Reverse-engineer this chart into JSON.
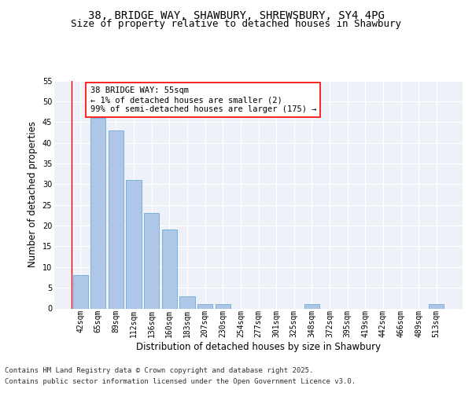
{
  "title_line1": "38, BRIDGE WAY, SHAWBURY, SHREWSBURY, SY4 4PG",
  "title_line2": "Size of property relative to detached houses in Shawbury",
  "xlabel": "Distribution of detached houses by size in Shawbury",
  "ylabel": "Number of detached properties",
  "bar_color": "#aec6e8",
  "bar_edge_color": "#5a9fd4",
  "categories": [
    "42sqm",
    "65sqm",
    "89sqm",
    "112sqm",
    "136sqm",
    "160sqm",
    "183sqm",
    "207sqm",
    "230sqm",
    "254sqm",
    "277sqm",
    "301sqm",
    "325sqm",
    "348sqm",
    "372sqm",
    "395sqm",
    "419sqm",
    "442sqm",
    "466sqm",
    "489sqm",
    "513sqm"
  ],
  "values": [
    8,
    46,
    43,
    31,
    23,
    19,
    3,
    1,
    1,
    0,
    0,
    0,
    0,
    1,
    0,
    0,
    0,
    0,
    0,
    0,
    1
  ],
  "ylim": [
    0,
    55
  ],
  "yticks": [
    0,
    5,
    10,
    15,
    20,
    25,
    30,
    35,
    40,
    45,
    50,
    55
  ],
  "annotation_text_line1": "38 BRIDGE WAY: 55sqm",
  "annotation_text_line2": "← 1% of detached houses are smaller (2)",
  "annotation_text_line3": "99% of semi-detached houses are larger (175) →",
  "background_color": "#eef2f8",
  "grid_color": "#ffffff",
  "footer_line1": "Contains HM Land Registry data © Crown copyright and database right 2025.",
  "footer_line2": "Contains public sector information licensed under the Open Government Licence v3.0.",
  "title_fontsize": 10,
  "subtitle_fontsize": 9,
  "axis_label_fontsize": 8.5,
  "tick_fontsize": 7,
  "annotation_fontsize": 7.5,
  "footer_fontsize": 6.5
}
